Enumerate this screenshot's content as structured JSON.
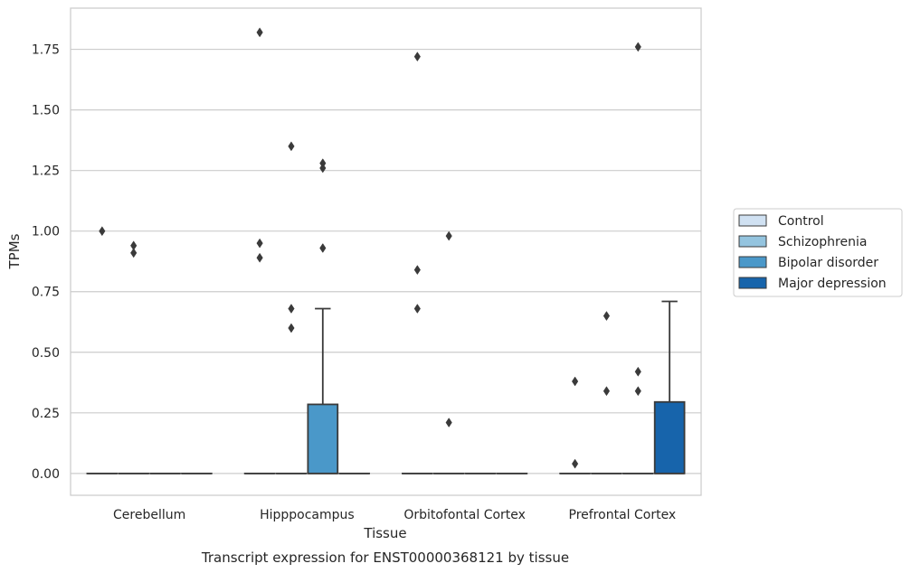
{
  "chart_data": {
    "type": "box",
    "xlabel": "Tissue",
    "ylabel": "TPMs",
    "caption": "Transcript expression for ENST00000368121 by tissue",
    "categories": [
      "Cerebellum",
      "Hipppocampus",
      "Orbitofontal Cortex",
      "Prefrontal Cortex"
    ],
    "ylim": [
      -0.09,
      1.92
    ],
    "yticks": [
      "0.00",
      "0.25",
      "0.50",
      "0.75",
      "1.00",
      "1.25",
      "1.50",
      "1.75"
    ],
    "grid": true,
    "legend_position": "right",
    "series": [
      {
        "name": "Control",
        "color": "#d0e1f2",
        "boxes": [
          {
            "q1": 0,
            "median": 0,
            "q3": 0,
            "whisker_low": 0,
            "whisker_high": 0,
            "outliers": [
              1.0
            ]
          },
          {
            "q1": 0,
            "median": 0,
            "q3": 0,
            "whisker_low": 0,
            "whisker_high": 0,
            "outliers": [
              1.82,
              0.95,
              0.89
            ]
          },
          {
            "q1": 0,
            "median": 0,
            "q3": 0,
            "whisker_low": 0,
            "whisker_high": 0,
            "outliers": [
              1.72,
              0.84,
              0.68
            ]
          },
          {
            "q1": 0,
            "median": 0,
            "q3": 0,
            "whisker_low": 0,
            "whisker_high": 0,
            "outliers": [
              0.38,
              0.04
            ]
          }
        ]
      },
      {
        "name": "Schizophrenia",
        "color": "#94c4df",
        "boxes": [
          {
            "q1": 0,
            "median": 0,
            "q3": 0,
            "whisker_low": 0,
            "whisker_high": 0,
            "outliers": [
              0.94,
              0.91
            ]
          },
          {
            "q1": 0,
            "median": 0,
            "q3": 0,
            "whisker_low": 0,
            "whisker_high": 0,
            "outliers": [
              1.35,
              0.68,
              0.6
            ]
          },
          {
            "q1": 0,
            "median": 0,
            "q3": 0,
            "whisker_low": 0,
            "whisker_high": 0,
            "outliers": [
              0.98,
              0.21
            ]
          },
          {
            "q1": 0,
            "median": 0,
            "q3": 0,
            "whisker_low": 0,
            "whisker_high": 0,
            "outliers": [
              0.65,
              0.34
            ]
          }
        ]
      },
      {
        "name": "Bipolar disorder",
        "color": "#4a98c9",
        "boxes": [
          {
            "q1": 0,
            "median": 0,
            "q3": 0,
            "whisker_low": 0,
            "whisker_high": 0,
            "outliers": []
          },
          {
            "q1": 0,
            "median": 0,
            "q3": 0.285,
            "whisker_low": 0,
            "whisker_high": 0.68,
            "outliers": [
              1.26,
              1.28,
              0.93
            ]
          },
          {
            "q1": 0,
            "median": 0,
            "q3": 0,
            "whisker_low": 0,
            "whisker_high": 0,
            "outliers": []
          },
          {
            "q1": 0,
            "median": 0,
            "q3": 0,
            "whisker_low": 0,
            "whisker_high": 0,
            "outliers": [
              1.76,
              0.42,
              0.34
            ]
          }
        ]
      },
      {
        "name": "Major depression",
        "color": "#1764ab",
        "boxes": [
          {
            "q1": 0,
            "median": 0,
            "q3": 0,
            "whisker_low": 0,
            "whisker_high": 0,
            "outliers": []
          },
          {
            "q1": 0,
            "median": 0,
            "q3": 0,
            "whisker_low": 0,
            "whisker_high": 0,
            "outliers": []
          },
          {
            "q1": 0,
            "median": 0,
            "q3": 0,
            "whisker_low": 0,
            "whisker_high": 0,
            "outliers": []
          },
          {
            "q1": 0,
            "median": 0,
            "q3": 0.295,
            "whisker_low": 0,
            "whisker_high": 0.71,
            "outliers": []
          }
        ]
      }
    ]
  }
}
